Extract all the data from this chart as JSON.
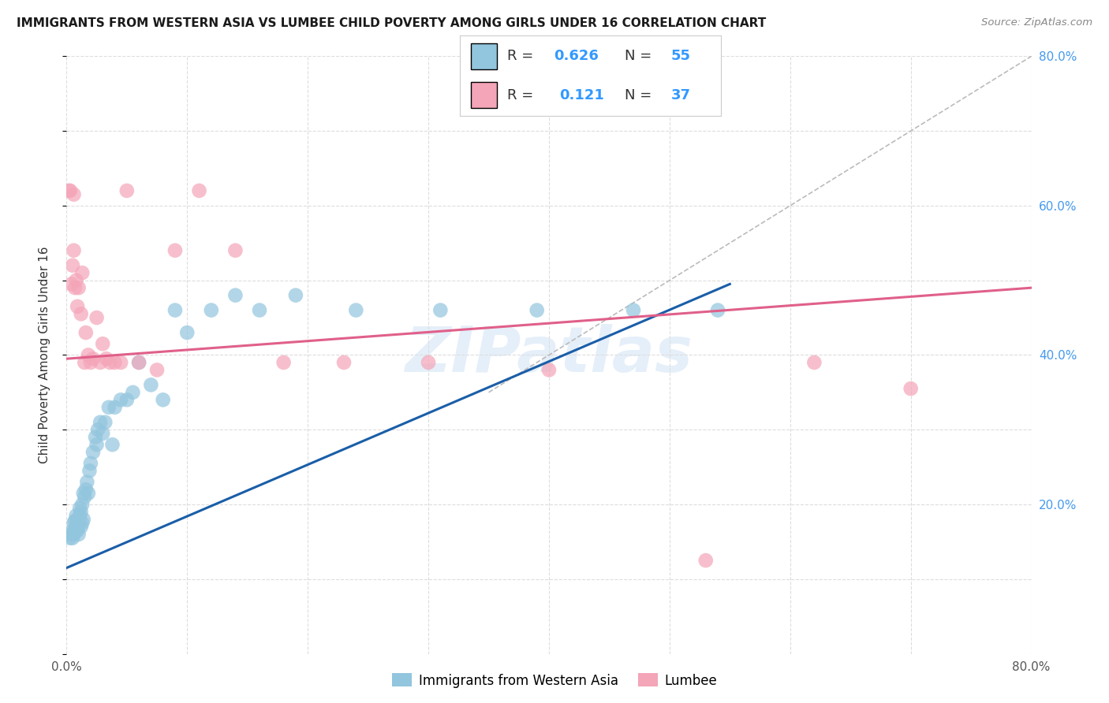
{
  "title": "IMMIGRANTS FROM WESTERN ASIA VS LUMBEE CHILD POVERTY AMONG GIRLS UNDER 16 CORRELATION CHART",
  "source": "Source: ZipAtlas.com",
  "ylabel": "Child Poverty Among Girls Under 16",
  "xlim": [
    0.0,
    0.8
  ],
  "ylim": [
    0.0,
    0.8
  ],
  "xtick_positions": [
    0.0,
    0.1,
    0.2,
    0.3,
    0.4,
    0.5,
    0.6,
    0.7,
    0.8
  ],
  "xtick_labels": [
    "0.0%",
    "",
    "",
    "",
    "",
    "",
    "",
    "",
    "80.0%"
  ],
  "ytick_positions": [
    0.0,
    0.1,
    0.2,
    0.3,
    0.4,
    0.5,
    0.6,
    0.7,
    0.8
  ],
  "ytick_labels_right": [
    "",
    "",
    "20.0%",
    "",
    "40.0%",
    "",
    "60.0%",
    "",
    "80.0%"
  ],
  "blue_scatter_x": [
    0.003,
    0.004,
    0.005,
    0.005,
    0.006,
    0.006,
    0.007,
    0.007,
    0.008,
    0.008,
    0.009,
    0.009,
    0.01,
    0.01,
    0.011,
    0.011,
    0.012,
    0.012,
    0.013,
    0.013,
    0.014,
    0.014,
    0.015,
    0.016,
    0.017,
    0.018,
    0.019,
    0.02,
    0.022,
    0.024,
    0.025,
    0.026,
    0.028,
    0.03,
    0.032,
    0.035,
    0.038,
    0.04,
    0.045,
    0.05,
    0.055,
    0.06,
    0.07,
    0.08,
    0.09,
    0.1,
    0.12,
    0.14,
    0.16,
    0.19,
    0.24,
    0.31,
    0.39,
    0.47,
    0.54
  ],
  "blue_scatter_y": [
    0.155,
    0.16,
    0.155,
    0.165,
    0.16,
    0.175,
    0.165,
    0.178,
    0.17,
    0.185,
    0.165,
    0.18,
    0.16,
    0.175,
    0.185,
    0.195,
    0.17,
    0.19,
    0.175,
    0.2,
    0.18,
    0.215,
    0.21,
    0.22,
    0.23,
    0.215,
    0.245,
    0.255,
    0.27,
    0.29,
    0.28,
    0.3,
    0.31,
    0.295,
    0.31,
    0.33,
    0.28,
    0.33,
    0.34,
    0.34,
    0.35,
    0.39,
    0.36,
    0.34,
    0.46,
    0.43,
    0.46,
    0.48,
    0.46,
    0.48,
    0.46,
    0.46,
    0.46,
    0.46,
    0.46
  ],
  "pink_scatter_x": [
    0.002,
    0.003,
    0.004,
    0.005,
    0.006,
    0.006,
    0.007,
    0.008,
    0.009,
    0.01,
    0.012,
    0.013,
    0.015,
    0.016,
    0.018,
    0.02,
    0.022,
    0.025,
    0.028,
    0.03,
    0.033,
    0.036,
    0.04,
    0.045,
    0.05,
    0.06,
    0.075,
    0.09,
    0.11,
    0.14,
    0.18,
    0.23,
    0.3,
    0.4,
    0.53,
    0.62,
    0.7
  ],
  "pink_scatter_y": [
    0.62,
    0.62,
    0.495,
    0.52,
    0.615,
    0.54,
    0.49,
    0.5,
    0.465,
    0.49,
    0.455,
    0.51,
    0.39,
    0.43,
    0.4,
    0.39,
    0.395,
    0.45,
    0.39,
    0.415,
    0.395,
    0.39,
    0.39,
    0.39,
    0.62,
    0.39,
    0.38,
    0.54,
    0.62,
    0.54,
    0.39,
    0.39,
    0.39,
    0.38,
    0.125,
    0.39,
    0.355
  ],
  "blue_line_x": [
    0.0,
    0.55
  ],
  "blue_line_y": [
    0.115,
    0.495
  ],
  "pink_line_x": [
    0.0,
    0.8
  ],
  "pink_line_y": [
    0.395,
    0.49
  ],
  "dashed_line_x": [
    0.35,
    0.8
  ],
  "dashed_line_y": [
    0.35,
    0.8
  ],
  "blue_color": "#92c5de",
  "pink_color": "#f4a5b8",
  "blue_line_color": "#1a5ea8",
  "pink_line_color": "#e0608a",
  "dashed_line_color": "#bbbbbb",
  "R_blue": "0.626",
  "N_blue": "55",
  "R_pink": "0.121",
  "N_pink": "37",
  "watermark": "ZIPatlas",
  "background_color": "#ffffff",
  "grid_color": "#dddddd",
  "title_fontsize": 11,
  "axis_label_fontsize": 11,
  "tick_fontsize": 11,
  "legend_fontsize": 13
}
